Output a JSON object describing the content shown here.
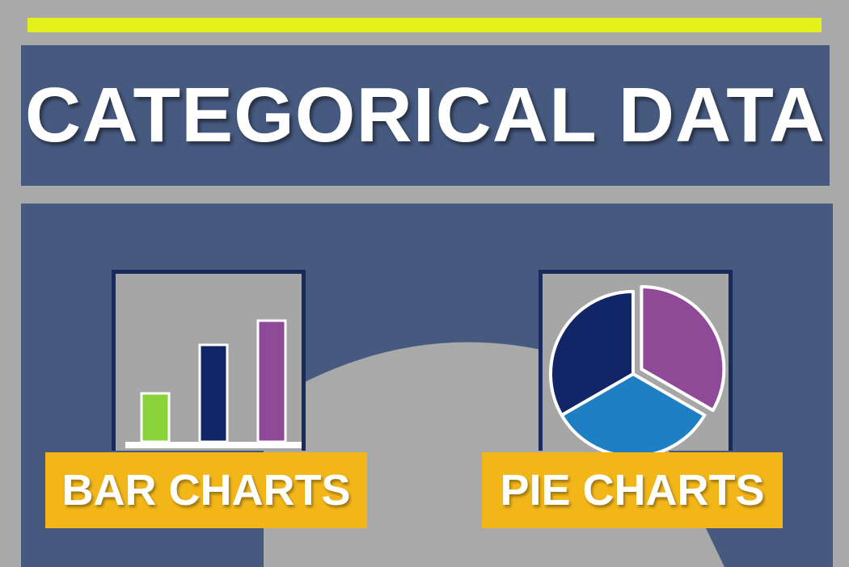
{
  "title": "CATEGORICAL DATA",
  "colors": {
    "background": "#a9a9a9",
    "panel": "#46597f",
    "accent_bar": "#e4f01c",
    "label_box": "#f2b619",
    "card_border": "#1a2a5c"
  },
  "items": [
    {
      "label": "BAR CHARTS",
      "icon": "bar-chart-icon"
    },
    {
      "label": "PIE CHARTS",
      "icon": "pie-chart-icon"
    }
  ],
  "chart_data": [
    {
      "type": "bar",
      "categories": [
        "",
        "",
        ""
      ],
      "values": [
        1,
        2,
        2.5
      ],
      "colors": [
        "#8bd33a",
        "#122566",
        "#8e4a97"
      ],
      "title": "",
      "xlabel": "",
      "ylabel": ""
    },
    {
      "type": "pie",
      "values": [
        1,
        1,
        1
      ],
      "colors": [
        "#8e4a97",
        "#1e7fc2",
        "#122566"
      ],
      "exploded": [
        true,
        false,
        false
      ],
      "title": ""
    }
  ]
}
